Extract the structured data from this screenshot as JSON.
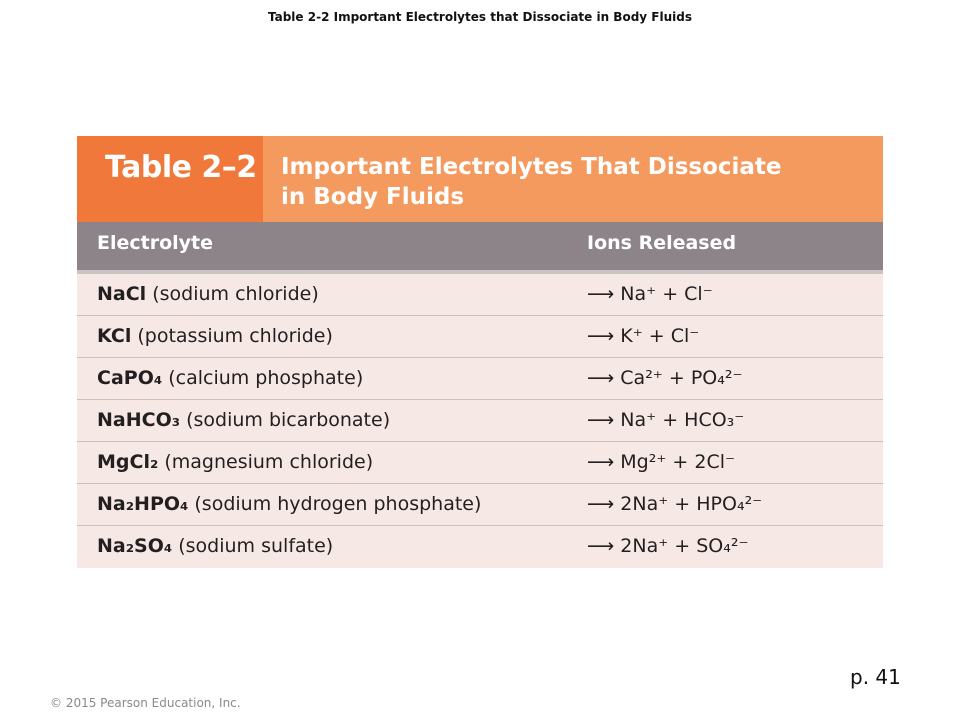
{
  "slide_title": "Table 2-2  Important Electrolytes that Dissociate in Body Fluids",
  "table": {
    "number": "Table 2–2",
    "title_line1": "Important Electrolytes That Dissociate",
    "title_line2": "in Body Fluids",
    "columns": [
      "Electrolyte",
      "Ions Released"
    ],
    "rows": [
      {
        "formula": "NaCl",
        "name": " (sodium chloride)",
        "ions": "⟶ Na⁺ + Cl⁻"
      },
      {
        "formula": "KCl",
        "name": " (potassium chloride)",
        "ions": "⟶ K⁺ + Cl⁻"
      },
      {
        "formula": "CaPO₄",
        "name": " (calcium phosphate)",
        "ions": "⟶ Ca²⁺ + PO₄²⁻"
      },
      {
        "formula": "NaHCO₃",
        "name": " (sodium bicarbonate)",
        "ions": "⟶ Na⁺ + HCO₃⁻"
      },
      {
        "formula": "MgCl₂",
        "name": " (magnesium chloride)",
        "ions": "⟶ Mg²⁺ + 2Cl⁻"
      },
      {
        "formula": "Na₂HPO₄",
        "name": " (sodium hydrogen phosphate)",
        "ions": "⟶ 2Na⁺ + HPO₄²⁻"
      },
      {
        "formula": "Na₂SO₄",
        "name": " (sodium sulfate)",
        "ions": "⟶ 2Na⁺ + SO₄²⁻"
      }
    ]
  },
  "footer": {
    "copyright": "© 2015 Pearson Education, Inc.",
    "page": "p. 41"
  },
  "colors": {
    "header_dark_orange": "#f0783a",
    "header_light_orange": "#f59a5e",
    "column_header_gray": "#8d8489",
    "row_background": "#f6e8e4"
  }
}
